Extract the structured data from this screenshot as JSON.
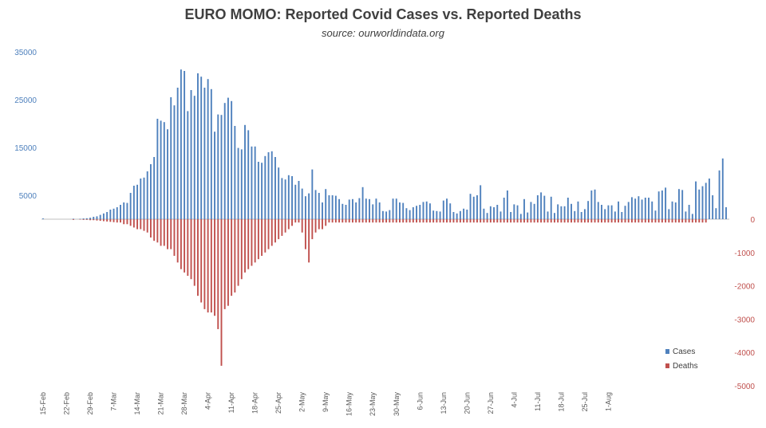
{
  "chart_data": {
    "type": "bar",
    "title": "EURO MOMO: Reported Covid Cases vs. Reported Deaths",
    "subtitle": "source: ourworldindata.org",
    "colors": {
      "cases": "#4f81bd",
      "deaths": "#c0504d",
      "left_axis": "#4f81bd",
      "right_axis": "#c0504d"
    },
    "left_axis": {
      "ylim": [
        0,
        35000
      ],
      "ticks": [
        5000,
        15000,
        25000,
        35000
      ]
    },
    "right_axis": {
      "ylim": [
        -5000,
        0
      ],
      "ticks": [
        0,
        -1000,
        -2000,
        -3000,
        -4000,
        -5000
      ]
    },
    "legend": {
      "position": "bottom-right",
      "entries": [
        "Cases",
        "Deaths"
      ]
    },
    "x_tick_labels": [
      "15-Feb",
      "22-Feb",
      "29-Feb",
      "7-Mar",
      "14-Mar",
      "21-Mar",
      "28-Mar",
      "4-Apr",
      "11-Apr",
      "18-Apr",
      "25-Apr",
      "2-May",
      "9-May",
      "16-May",
      "23-May",
      "30-May",
      "6-Jun",
      "13-Jun",
      "20-Jun",
      "27-Jun",
      "4-Jul",
      "11-Jul",
      "18-Jul",
      "25-Jul",
      "1-Aug"
    ],
    "grid": false,
    "series": [
      {
        "name": "Cases",
        "axis": "left",
        "start_date": "15-Feb",
        "values": [
          150,
          0,
          0,
          0,
          0,
          0,
          0,
          0,
          0,
          100,
          0,
          80,
          150,
          200,
          300,
          500,
          600,
          900,
          1200,
          1500,
          2000,
          2200,
          2500,
          3000,
          3500,
          3400,
          5500,
          7000,
          7200,
          8500,
          8700,
          10000,
          11500,
          13000,
          21000,
          20600,
          20300,
          18800,
          25500,
          23800,
          27500,
          31300,
          31000,
          22600,
          27000,
          25800,
          30500,
          29800,
          27500,
          29300,
          27200,
          18300,
          21900,
          21800,
          24300,
          25400,
          24700,
          19500,
          14900,
          14600,
          19700,
          18600,
          15200,
          15200,
          12000,
          11800,
          13200,
          14000,
          14200,
          13000,
          10800,
          8600,
          8300,
          9200,
          9000,
          7200,
          8000,
          6400,
          4800,
          5400,
          10400,
          6100,
          5500,
          3500,
          6300,
          5000,
          5000,
          4900,
          4200,
          3200,
          3000,
          4100,
          4200,
          3500,
          4400,
          6700,
          4300,
          4200,
          3100,
          4300,
          3500,
          1700,
          1600,
          1900,
          4300,
          4300,
          3500,
          3400,
          2300,
          1900,
          2500,
          2800,
          3000,
          3600,
          3700,
          3300,
          1800,
          1700,
          1600,
          3900,
          4300,
          3300,
          1500,
          1200,
          1700,
          2200,
          2000,
          5300,
          4700,
          5000,
          7100,
          2200,
          1300,
          2700,
          2500,
          3000,
          1600,
          4500,
          6000,
          1500,
          3100,
          2900,
          1100,
          4200,
          1400,
          3600,
          3200,
          5000,
          5600,
          4900,
          1600,
          4700,
          1300,
          3100,
          2700,
          2700,
          4500,
          3200,
          1700,
          3700,
          1500,
          2100,
          3800,
          6000,
          6200,
          3600,
          3000,
          2100,
          2900,
          2900,
          1600,
          3700,
          1500,
          2800,
          3600,
          4600,
          4300,
          4800,
          4100,
          4500,
          4500,
          3700,
          1800,
          5800,
          6000,
          6600,
          2100,
          3700,
          3500,
          6300,
          6100,
          1600,
          3000,
          1100,
          7900,
          6200,
          6900,
          7600,
          8500,
          5000,
          2300,
          10200,
          12700,
          2500
        ]
      },
      {
        "name": "Deaths",
        "axis": "right",
        "start_date": "15-Feb",
        "values": [
          0,
          0,
          0,
          0,
          0,
          0,
          0,
          0,
          0,
          -20,
          0,
          -10,
          -20,
          -20,
          -30,
          -30,
          -40,
          -50,
          -60,
          -70,
          -80,
          -90,
          -100,
          -100,
          -150,
          -150,
          -200,
          -250,
          -300,
          -300,
          -350,
          -400,
          -550,
          -650,
          -700,
          -800,
          -800,
          -900,
          -900,
          -1100,
          -1300,
          -1500,
          -1600,
          -1700,
          -1800,
          -2000,
          -2300,
          -2500,
          -2700,
          -2800,
          -2800,
          -2900,
          -3300,
          -4400,
          -2700,
          -2600,
          -2300,
          -2200,
          -2000,
          -1800,
          -1600,
          -1500,
          -1400,
          -1300,
          -1200,
          -1100,
          -1000,
          -900,
          -800,
          -700,
          -600,
          -500,
          -400,
          -300,
          -200,
          -100,
          -100,
          -400,
          -900,
          -1300,
          -600,
          -400,
          -300,
          -300,
          -200,
          -100,
          -100,
          -100,
          -100,
          -100,
          -100,
          -100,
          -100,
          -100,
          -100,
          -100,
          -100,
          -100,
          -100,
          -100,
          -100,
          -100,
          -100,
          -100,
          -100,
          -100,
          -100,
          -100,
          -100,
          -100,
          -100,
          -100,
          -100,
          -100,
          -100,
          -100,
          -100,
          -100,
          -100,
          -100,
          -100,
          -100,
          -100,
          -100,
          -100,
          -100,
          -100,
          -100,
          -100,
          -100,
          -100,
          -100,
          -100,
          -100,
          -100,
          -100,
          -100,
          -100,
          -100,
          -100,
          -100,
          -100,
          -100,
          -100,
          -100,
          -100,
          -100,
          -100,
          -100,
          -100,
          -100,
          -100,
          -100,
          -100,
          -100,
          -100,
          -100,
          -100,
          -100,
          -100,
          -100,
          -100,
          -100,
          -100,
          -100,
          -100,
          -100,
          -100,
          -100,
          -100,
          -100,
          -100,
          -100,
          -100,
          -100,
          -100,
          -100,
          -100,
          -100,
          -100,
          -100,
          -100,
          -100,
          -100,
          -100,
          -100,
          -100,
          -100,
          -100,
          -100,
          -100,
          -100,
          -100,
          -100,
          -100,
          -100,
          -100,
          -100
        ]
      }
    ]
  }
}
